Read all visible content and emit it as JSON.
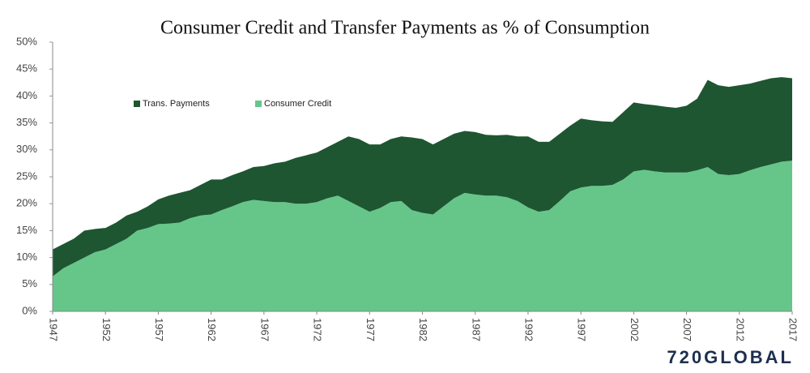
{
  "chart_data": {
    "type": "stacked_area",
    "title": "Consumer Credit and Transfer Payments as % of Consumption",
    "logo": "720GLOBAL",
    "x": [
      1947,
      1948,
      1949,
      1950,
      1951,
      1952,
      1953,
      1954,
      1955,
      1956,
      1957,
      1958,
      1959,
      1960,
      1961,
      1962,
      1963,
      1964,
      1965,
      1966,
      1967,
      1968,
      1969,
      1970,
      1971,
      1972,
      1973,
      1974,
      1975,
      1976,
      1977,
      1978,
      1979,
      1980,
      1981,
      1982,
      1983,
      1984,
      1985,
      1986,
      1987,
      1988,
      1989,
      1990,
      1991,
      1992,
      1993,
      1994,
      1995,
      1996,
      1997,
      1998,
      1999,
      2000,
      2001,
      2002,
      2003,
      2004,
      2005,
      2006,
      2007,
      2008,
      2009,
      2010,
      2011,
      2012,
      2013,
      2014,
      2015,
      2016,
      2017
    ],
    "series": [
      {
        "name": "Consumer Credit",
        "color": "#66c68a",
        "values": [
          6.5,
          8,
          9,
          10,
          11,
          11.5,
          12.5,
          13.5,
          15,
          15.5,
          16.2,
          16.3,
          16.5,
          17.3,
          17.8,
          18,
          18.8,
          19.5,
          20.3,
          20.7,
          20.5,
          20.3,
          20.3,
          20,
          20,
          20.3,
          21,
          21.5,
          20.5,
          19.5,
          18.5,
          19.2,
          20.3,
          20.5,
          18.8,
          18.3,
          18,
          19.5,
          21,
          22,
          21.7,
          21.5,
          21.5,
          21.2,
          20.5,
          19.3,
          18.5,
          18.8,
          20.5,
          22.3,
          23,
          23.3,
          23.3,
          23.5,
          24.5,
          26,
          26.3,
          26,
          25.8,
          25.8,
          25.8,
          26.2,
          26.8,
          25.5,
          25.3,
          25.5,
          26.2,
          26.8,
          27.3,
          27.8,
          28
        ]
      },
      {
        "name": "Trans. Payments",
        "color": "#1e5631",
        "values": [
          5,
          4.5,
          4.5,
          5,
          4.3,
          4,
          4,
          4.3,
          3.5,
          4,
          4.6,
          5.2,
          5.5,
          5.2,
          5.7,
          6.5,
          5.7,
          5.8,
          5.7,
          6.1,
          6.5,
          7.2,
          7.5,
          8.5,
          9,
          9.2,
          9.5,
          10,
          12,
          12.5,
          12.5,
          11.8,
          11.7,
          12,
          13.5,
          13.7,
          13,
          12.5,
          12,
          11.5,
          11.6,
          11.3,
          11.2,
          11.6,
          12,
          13.2,
          13,
          12.7,
          12.5,
          12.2,
          12.8,
          12.2,
          12,
          11.7,
          12.5,
          12.8,
          12.2,
          12.3,
          12.2,
          12,
          12.4,
          13.3,
          16.2,
          16.5,
          16.4,
          16.5,
          16.1,
          16,
          16,
          15.7,
          15.3
        ]
      }
    ],
    "xlim": [
      1947,
      2017
    ],
    "xticks": [
      1947,
      1952,
      1957,
      1962,
      1967,
      1972,
      1977,
      1982,
      1987,
      1992,
      1997,
      2002,
      2007,
      2012,
      2017
    ],
    "ylim": [
      0,
      50
    ],
    "yticks": [
      {
        "value": 0,
        "label": "0%"
      },
      {
        "value": 5,
        "label": "5%"
      },
      {
        "value": 10,
        "label": "10%"
      },
      {
        "value": 15,
        "label": "15%"
      },
      {
        "value": 20,
        "label": "20%"
      },
      {
        "value": 25,
        "label": "25%"
      },
      {
        "value": 30,
        "label": "30%"
      },
      {
        "value": 35,
        "label": "35%"
      },
      {
        "value": 40,
        "label": "40%"
      },
      {
        "value": 45,
        "label": "45%"
      },
      {
        "value": 50,
        "label": "50%"
      }
    ],
    "grid": false
  }
}
